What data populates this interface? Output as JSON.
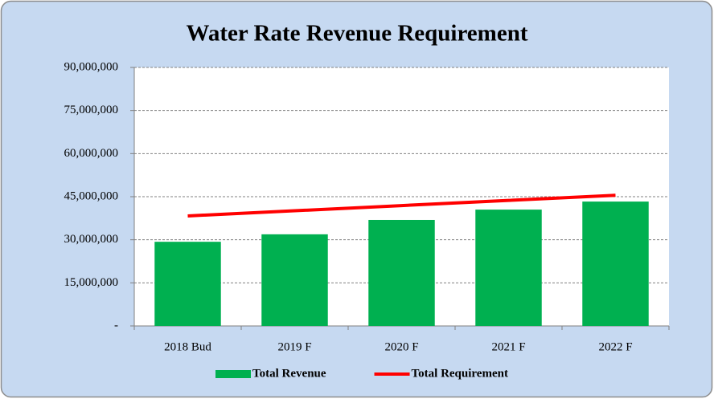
{
  "chart_data": {
    "type": "bar",
    "title": "Water Rate Revenue Requirement",
    "categories": [
      "2018 Bud",
      "2019 F",
      "2020 F",
      "2021 F",
      "2022 F"
    ],
    "series": [
      {
        "name": "Total Revenue",
        "type": "bar",
        "color": "#00b050",
        "values": [
          29300000,
          31900000,
          36900000,
          40500000,
          43300000
        ]
      },
      {
        "name": "Total Requirement",
        "type": "line",
        "color": "#ff0000",
        "values": [
          38300000,
          40100000,
          41900000,
          43700000,
          45500000
        ]
      }
    ],
    "ylim": [
      0,
      90000000
    ],
    "yticks": [
      {
        "value": 0,
        "label": "-"
      },
      {
        "value": 15000000,
        "label": "15,000,000"
      },
      {
        "value": 30000000,
        "label": "30,000,000"
      },
      {
        "value": 45000000,
        "label": "45,000,000"
      },
      {
        "value": 60000000,
        "label": "60,000,000"
      },
      {
        "value": 75000000,
        "label": "75,000,000"
      },
      {
        "value": 90000000,
        "label": "90,000,000"
      }
    ],
    "grid": true,
    "legend": "bottom"
  }
}
